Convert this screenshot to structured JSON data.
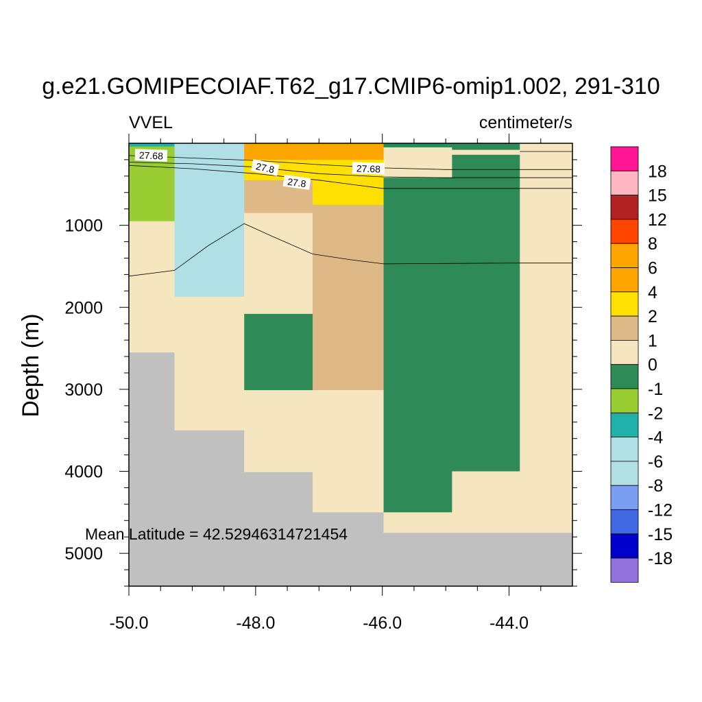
{
  "chart_data": {
    "type": "heatmap",
    "title": "g.e21.GOMIPECOIAF.T62_g17.CMIP6-omip1.002, 291-310",
    "left_string": "VVEL",
    "right_string": "centimeter/s",
    "ylabel": "Depth (m)",
    "xlabel": "",
    "xlim": [
      -50.0,
      -43.0
    ],
    "ylim": [
      5400,
      0
    ],
    "x_ticks": [
      -50.0,
      -48.0,
      -46.0,
      -44.0
    ],
    "x_tick_labels": [
      "-50.0",
      "-48.0",
      "-46.0",
      "-44.0"
    ],
    "y_ticks": [
      1000,
      2000,
      3000,
      4000,
      5000
    ],
    "y_tick_labels": [
      "1000",
      "2000",
      "3000",
      "4000",
      "5000"
    ],
    "annotation": "Mean Latitude = 42.52946314721454",
    "colorbar": {
      "labels": [
        "18",
        "15",
        "12",
        "8",
        "6",
        "4",
        "2",
        "1",
        "0",
        "-1",
        "-2",
        "-4",
        "-6",
        "-8",
        "-12",
        "-15",
        "-18"
      ],
      "colors": [
        "#ff1493",
        "#ffb6c1",
        "#b22222",
        "#ff4500",
        "#ffa500",
        "#ffa500",
        "#ffe000",
        "#deb887",
        "#f5e6bf",
        "#2e8b57",
        "#9acd32",
        "#20b2aa",
        "#b0e0e6",
        "#b0e0e6",
        "#7b9ff0",
        "#4169e1",
        "#0000cd",
        "#9370db"
      ]
    },
    "missing_color": "#c0c0c0",
    "cells": [
      {
        "x0": -50.0,
        "x1": -49.28,
        "d0": 0,
        "d1": 40,
        "color": "#20b2aa"
      },
      {
        "x0": -50.0,
        "x1": -49.28,
        "d0": 40,
        "d1": 950,
        "color": "#9acd32"
      },
      {
        "x0": -50.0,
        "x1": -49.28,
        "d0": 950,
        "d1": 2550,
        "color": "#f5e6bf"
      },
      {
        "x0": -50.0,
        "x1": -49.28,
        "d0": 2550,
        "d1": 5400,
        "color": "#c0c0c0"
      },
      {
        "x0": -49.28,
        "x1": -48.18,
        "d0": 0,
        "d1": 1870,
        "color": "#b0e0e6"
      },
      {
        "x0": -49.28,
        "x1": -48.18,
        "d0": 1870,
        "d1": 3500,
        "color": "#f5e6bf"
      },
      {
        "x0": -49.28,
        "x1": -48.18,
        "d0": 3500,
        "d1": 5400,
        "color": "#c0c0c0"
      },
      {
        "x0": -48.18,
        "x1": -47.1,
        "d0": 0,
        "d1": 200,
        "color": "#ffa500"
      },
      {
        "x0": -48.18,
        "x1": -47.1,
        "d0": 200,
        "d1": 450,
        "color": "#ffe000"
      },
      {
        "x0": -48.18,
        "x1": -47.1,
        "d0": 450,
        "d1": 850,
        "color": "#deb887"
      },
      {
        "x0": -48.18,
        "x1": -47.1,
        "d0": 850,
        "d1": 2080,
        "color": "#f5e6bf"
      },
      {
        "x0": -48.18,
        "x1": -47.1,
        "d0": 2080,
        "d1": 3010,
        "color": "#2e8b57"
      },
      {
        "x0": -48.18,
        "x1": -47.1,
        "d0": 3010,
        "d1": 4010,
        "color": "#f5e6bf"
      },
      {
        "x0": -48.18,
        "x1": -47.1,
        "d0": 4010,
        "d1": 5400,
        "color": "#c0c0c0"
      },
      {
        "x0": -47.1,
        "x1": -45.98,
        "d0": 0,
        "d1": 200,
        "color": "#ffa500"
      },
      {
        "x0": -47.1,
        "x1": -45.98,
        "d0": 200,
        "d1": 750,
        "color": "#ffe000"
      },
      {
        "x0": -47.1,
        "x1": -45.98,
        "d0": 750,
        "d1": 3010,
        "color": "#deb887"
      },
      {
        "x0": -47.1,
        "x1": -45.98,
        "d0": 3010,
        "d1": 4500,
        "color": "#f5e6bf"
      },
      {
        "x0": -47.1,
        "x1": -45.98,
        "d0": 4500,
        "d1": 5400,
        "color": "#c0c0c0"
      },
      {
        "x0": -45.98,
        "x1": -44.9,
        "d0": 0,
        "d1": 50,
        "color": "#2e8b57"
      },
      {
        "x0": -45.98,
        "x1": -44.9,
        "d0": 50,
        "d1": 420,
        "color": "#f5e6bf"
      },
      {
        "x0": -45.98,
        "x1": -44.9,
        "d0": 420,
        "d1": 4500,
        "color": "#2e8b57"
      },
      {
        "x0": -45.98,
        "x1": -44.9,
        "d0": 4500,
        "d1": 4750,
        "color": "#f5e6bf"
      },
      {
        "x0": -45.98,
        "x1": -44.9,
        "d0": 4750,
        "d1": 5400,
        "color": "#c0c0c0"
      },
      {
        "x0": -44.9,
        "x1": -43.83,
        "d0": 0,
        "d1": 80,
        "color": "#2e8b57"
      },
      {
        "x0": -44.9,
        "x1": -43.83,
        "d0": 80,
        "d1": 140,
        "color": "#f5e6bf"
      },
      {
        "x0": -44.9,
        "x1": -43.83,
        "d0": 140,
        "d1": 4000,
        "color": "#2e8b57"
      },
      {
        "x0": -44.9,
        "x1": -43.83,
        "d0": 4000,
        "d1": 4750,
        "color": "#f5e6bf"
      },
      {
        "x0": -44.9,
        "x1": -43.83,
        "d0": 4750,
        "d1": 5400,
        "color": "#c0c0c0"
      },
      {
        "x0": -43.83,
        "x1": -43.0,
        "d0": 0,
        "d1": 4750,
        "color": "#f5e6bf"
      },
      {
        "x0": -43.83,
        "x1": -43.0,
        "d0": 4750,
        "d1": 5400,
        "color": "#c0c0c0"
      }
    ],
    "contours": [
      {
        "label": "27.68",
        "points": [
          [
            -50.0,
            150
          ],
          [
            -49.0,
            180
          ],
          [
            -48.0,
            210
          ],
          [
            -47.0,
            260
          ],
          [
            -46.0,
            300
          ],
          [
            -45.0,
            320
          ],
          [
            -44.0,
            320
          ],
          [
            -43.0,
            320
          ]
        ]
      },
      {
        "label": "27.8",
        "points": [
          [
            -50.0,
            230
          ],
          [
            -49.0,
            250
          ],
          [
            -48.0,
            290
          ],
          [
            -47.0,
            370
          ],
          [
            -46.0,
            410
          ],
          [
            -45.0,
            420
          ],
          [
            -44.0,
            420
          ],
          [
            -43.0,
            420
          ]
        ]
      },
      {
        "label": "",
        "points": [
          [
            -50.0,
            270
          ],
          [
            -49.0,
            310
          ],
          [
            -48.0,
            370
          ],
          [
            -47.0,
            450
          ],
          [
            -46.0,
            550
          ],
          [
            -45.0,
            550
          ],
          [
            -44.0,
            550
          ],
          [
            -43.0,
            550
          ]
        ]
      },
      {
        "label": "",
        "points": [
          [
            -50.0,
            1620
          ],
          [
            -49.28,
            1550
          ],
          [
            -48.75,
            1250
          ],
          [
            -48.18,
            980
          ],
          [
            -47.75,
            1130
          ],
          [
            -47.1,
            1350
          ],
          [
            -46.5,
            1420
          ],
          [
            -45.98,
            1470
          ],
          [
            -45.0,
            1465
          ],
          [
            -44.0,
            1460
          ],
          [
            -43.0,
            1460
          ]
        ]
      },
      {
        "label": "",
        "points": [
          [
            -43.83,
            100
          ],
          [
            -43.0,
            100
          ]
        ]
      }
    ],
    "contour_labels": [
      {
        "text": "27.68",
        "x": -49.65,
        "d": 150,
        "angle": 2
      },
      {
        "text": "27.8",
        "x": -47.85,
        "d": 300,
        "angle": 12
      },
      {
        "text": "27.8",
        "x": -47.35,
        "d": 480,
        "angle": 8
      },
      {
        "text": "27.68",
        "x": -46.22,
        "d": 310,
        "angle": 2
      }
    ]
  }
}
